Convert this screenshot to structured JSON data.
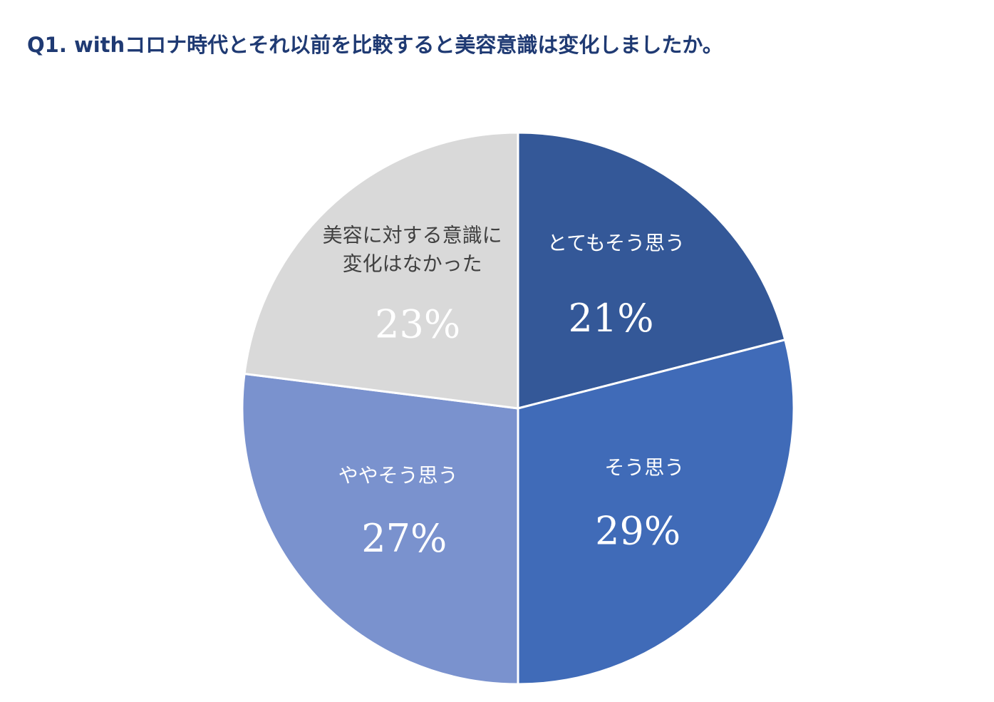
{
  "title": "Q1. withコロナ時代とそれ以前を比較すると美容意識は変化しましたか。",
  "chart_data": {
    "type": "pie",
    "title": "Q1. withコロナ時代とそれ以前を比較すると美容意識は変化しましたか。",
    "start": "12 o'clock",
    "direction": "clockwise",
    "slices": [
      {
        "key": "s1",
        "label_lines": [
          "とてもそう思う"
        ],
        "value": 21,
        "value_label": "21%",
        "color": "#345898",
        "label_color": "#ffffff"
      },
      {
        "key": "s2",
        "label_lines": [
          "そう思う"
        ],
        "value": 29,
        "value_label": "29%",
        "color": "#406bb8",
        "label_color": "#ffffff"
      },
      {
        "key": "s3",
        "label_lines": [
          "ややそう思う"
        ],
        "value": 27,
        "value_label": "27%",
        "color": "#7a92ce",
        "label_color": "#ffffff"
      },
      {
        "key": "s4",
        "label_lines": [
          "美容に対する意識に",
          "変化はなかった"
        ],
        "value": 23,
        "value_label": "23%",
        "color": "#d9d9d9",
        "label_color": "#404040"
      }
    ]
  }
}
